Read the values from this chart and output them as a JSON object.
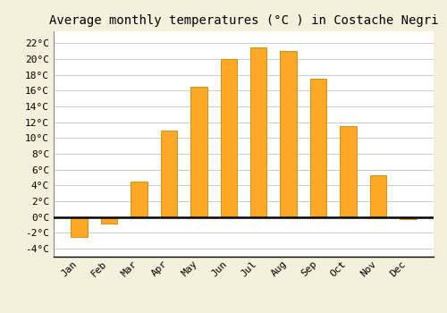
{
  "months": [
    "Jan",
    "Feb",
    "Mar",
    "Apr",
    "May",
    "Jun",
    "Jul",
    "Aug",
    "Sep",
    "Oct",
    "Nov",
    "Dec"
  ],
  "values": [
    -2.5,
    -0.8,
    4.5,
    11.0,
    16.5,
    20.0,
    21.5,
    21.0,
    17.5,
    11.5,
    5.3,
    -0.2
  ],
  "bar_color": "#FFA726",
  "bar_edge_color": "#CC8800",
  "background_color": "#F5F0DC",
  "plot_bg_color": "#FFFFFF",
  "title": "Average monthly temperatures (°C ) in Costache Negri",
  "title_fontsize": 10,
  "ylim": [
    -5,
    23.5
  ],
  "yticks": [
    -4,
    -2,
    0,
    2,
    4,
    6,
    8,
    10,
    12,
    14,
    16,
    18,
    20,
    22
  ],
  "ytick_labels": [
    "-4°C",
    "-2°C",
    "0°C",
    "2°C",
    "4°C",
    "6°C",
    "8°C",
    "10°C",
    "12°C",
    "14°C",
    "16°C",
    "18°C",
    "20°C",
    "22°C"
  ],
  "grid_color": "#CCCCCC",
  "zero_line_color": "#000000",
  "font_family": "monospace",
  "title_font_size": 10,
  "tick_font_size": 8,
  "bar_width": 0.55
}
